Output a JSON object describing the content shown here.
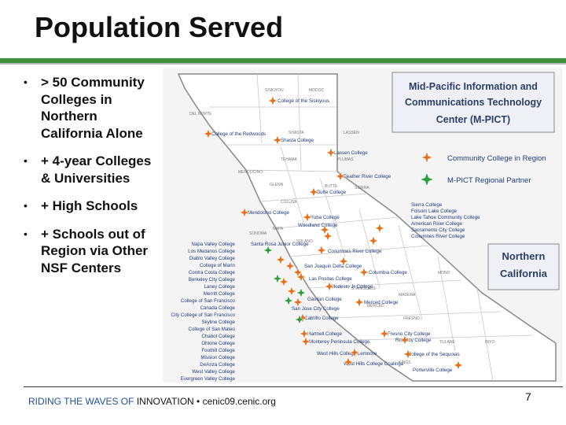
{
  "slide": {
    "title": "Population Served",
    "page_number": "7"
  },
  "bullets": [
    "> 50 Community Colleges in Northern California Alone",
    "+ 4-year Colleges & Universities",
    "+ High Schools",
    "+ Schools out of Region via Other NSF Centers"
  ],
  "footer": {
    "part1": "RIDING THE WAVES OF",
    "part2": "INNOVATION",
    "part3": "• cenic09.cenic.org"
  },
  "map": {
    "center_box": [
      "Mid-Pacific Information and",
      "Communications Technology",
      "Center (M-PICT)"
    ],
    "legend": [
      {
        "label": "Community College in Region",
        "color": "#e8701a"
      },
      {
        "label": "M-PICT Regional Partner",
        "color": "#2f9c3e"
      }
    ],
    "region_box": [
      "Northern",
      "California"
    ],
    "counties": [
      "SISKIYOU",
      "DEL NORTE",
      "MODOC",
      "SHASTA",
      "LASSEN",
      "TEHAMA",
      "PLUMAS",
      "GLENN",
      "BUTTE",
      "MENDOCINO",
      "COLUSA",
      "SIERRA",
      "SONOMA",
      "NAPA",
      "SOLANO",
      "STANISLAUS",
      "MERCED",
      "MADERA",
      "FRESNO",
      "TULARE",
      "INYO",
      "KINGS",
      "MONO"
    ],
    "labels_top": [
      "College of the Siskiyous",
      "College of the Redwoods",
      "Shasta College",
      "Lassen College",
      "Feather River College",
      "Butte College",
      "Mendocino College",
      "Yuba College",
      "Woodland College"
    ],
    "labels_left": [
      "Napa Valley College",
      "Los Medanos College",
      "Diablo Valley College",
      "College of Marin",
      "Contra Costa College",
      "Berkeley City College",
      "Laney College",
      "Merritt College",
      "College of San Francisco",
      "Canada College",
      "City College of San Francisco",
      "Skyline College",
      "College of San Mateo",
      "Chabot College",
      "Ohlone College",
      "Foothill College",
      "Mission College",
      "DeAnza College",
      "West Valley College",
      "Evergreen Valley College"
    ],
    "labels_center": [
      "Santa Rosa Junior College",
      "Cosumnes River College",
      "San Joaquin Delta College",
      "Columbia College",
      "Las Positas College",
      "Modesto Jr College",
      "Merced College",
      "Gavilan College",
      "Cabrillo College",
      "Hartnell College",
      "Monterey Peninsula College",
      "West Hills College Lemoore",
      "West Hills College Coalinga",
      "Fresno City College",
      "Reedley College",
      "College of the Sequoias",
      "Porterville College",
      "San Jose City College"
    ],
    "labels_right": [
      "Sierra College",
      "Folsom Lake College",
      "Lake Tahoe Community College",
      "American River College",
      "Sacramento City College",
      "Cosumnes River College"
    ]
  }
}
